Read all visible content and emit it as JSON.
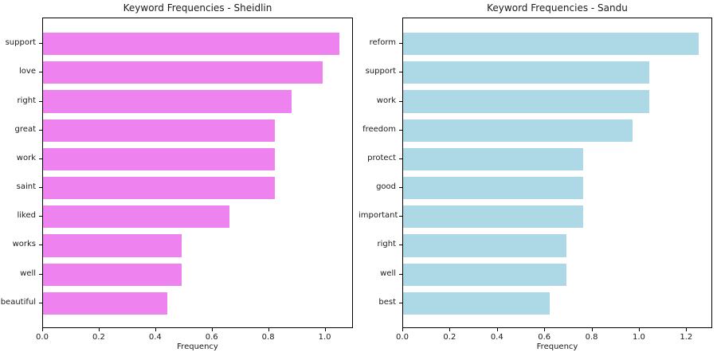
{
  "figure": {
    "background_color": "#ffffff",
    "text_color": "#1a1a1a"
  },
  "chart_data": [
    {
      "type": "bar",
      "orientation": "horizontal",
      "title": "Keyword Frequencies - Sheidlin",
      "xlabel": "Frequency",
      "categories": [
        "support",
        "love",
        "right",
        "great",
        "work",
        "saint",
        "liked",
        "works",
        "well",
        "beautiful"
      ],
      "values": [
        1.05,
        0.99,
        0.88,
        0.82,
        0.82,
        0.82,
        0.66,
        0.49,
        0.49,
        0.44
      ],
      "bar_color": "#EE82EE",
      "xticks": [
        0.0,
        0.2,
        0.4,
        0.6,
        0.8,
        1.0
      ],
      "xlim": [
        0,
        1.1
      ],
      "grid": false,
      "legend": "none"
    },
    {
      "type": "bar",
      "orientation": "horizontal",
      "title": "Keyword Frequencies - Sandu",
      "xlabel": "Frequency",
      "categories": [
        "reform",
        "support",
        "work",
        "freedom",
        "protect",
        "good",
        "important",
        "right",
        "well",
        "best"
      ],
      "values": [
        1.25,
        1.04,
        1.04,
        0.97,
        0.76,
        0.76,
        0.76,
        0.69,
        0.69,
        0.62
      ],
      "bar_color": "#ADD8E6",
      "xticks": [
        0.0,
        0.2,
        0.4,
        0.6,
        0.8,
        1.0,
        1.2
      ],
      "xlim": [
        0,
        1.31
      ],
      "grid": false,
      "legend": "none"
    }
  ]
}
